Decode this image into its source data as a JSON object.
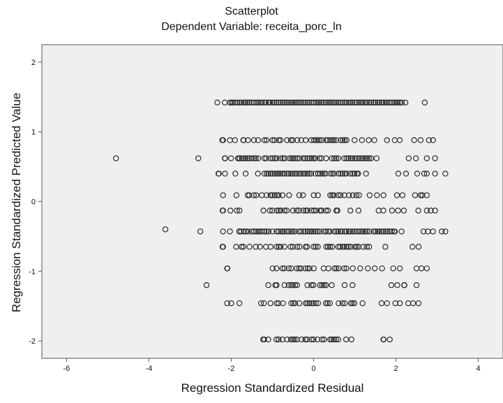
{
  "chart_data": {
    "type": "scatter",
    "title": "Scatterplot",
    "subtitle": "Dependent Variable: receita_porc_ln",
    "xlabel": "Regression Standardized Residual",
    "ylabel": "Regression Standardized Predicted Value",
    "xlim": [
      -6.6,
      4.6
    ],
    "ylim": [
      -2.25,
      2.25
    ],
    "xticks": [
      -6,
      -4,
      -2,
      0,
      2,
      4
    ],
    "yticks": [
      -2,
      -1,
      0,
      1,
      2
    ],
    "grid": false,
    "colors": {
      "plot_bg": "#efefef",
      "marker": "#2a2a2a",
      "frame": "#555555"
    },
    "bands": [
      {
        "y": 1.42,
        "xmin": -2.5,
        "xmax": 2.45,
        "dense_min": -2.0,
        "dense_max": 2.2,
        "density": 1.0
      },
      {
        "y": 0.88,
        "xmin": -2.2,
        "xmax": 2.9,
        "dense_min": -1.6,
        "dense_max": 1.0,
        "density": 0.55
      },
      {
        "y": 0.62,
        "xmin": -2.15,
        "xmax": 2.85,
        "dense_min": -1.8,
        "dense_max": 1.5,
        "density": 0.8
      },
      {
        "y": 0.4,
        "xmin": -2.3,
        "xmax": 3.2,
        "dense_min": -1.2,
        "dense_max": 1.1,
        "density": 0.85
      },
      {
        "y": 0.09,
        "xmin": -2.2,
        "xmax": 2.75,
        "dense_min": -1.5,
        "dense_max": 1.2,
        "density": 0.6
      },
      {
        "y": -0.13,
        "xmin": -2.2,
        "xmax": 2.95,
        "dense_min": -1.0,
        "dense_max": 0.6,
        "density": 0.45
      },
      {
        "y": -0.43,
        "xmin": -2.2,
        "xmax": 3.2,
        "dense_min": -1.8,
        "dense_max": 2.0,
        "density": 0.9
      },
      {
        "y": -0.65,
        "xmin": -2.2,
        "xmax": 2.5,
        "dense_min": -1.3,
        "dense_max": 1.4,
        "density": 0.55
      },
      {
        "y": -0.96,
        "xmin": -2.1,
        "xmax": 2.75,
        "dense_min": -1.0,
        "dense_max": 1.0,
        "density": 0.6
      },
      {
        "y": -1.2,
        "xmin": -1.1,
        "xmax": 2.5,
        "dense_min": -0.8,
        "dense_max": 0.6,
        "density": 0.5
      },
      {
        "y": -1.46,
        "xmin": -2.1,
        "xmax": 2.55,
        "dense_min": -1.2,
        "dense_max": 1.0,
        "density": 0.6
      },
      {
        "y": -1.98,
        "xmin": -1.2,
        "xmax": 1.85,
        "dense_min": -0.9,
        "dense_max": 0.6,
        "density": 0.7
      }
    ],
    "points": [
      [
        2.7,
        1.42
      ],
      [
        -4.8,
        0.62
      ],
      [
        -2.8,
        0.62
      ],
      [
        -3.6,
        -0.4
      ],
      [
        -2.75,
        -0.43
      ],
      [
        -2.6,
        -1.2
      ],
      [
        2.9,
        0.88
      ],
      [
        2.75,
        0.62
      ],
      [
        2.8,
        0.88
      ],
      [
        2.95,
        0.62
      ],
      [
        2.75,
        0.4
      ],
      [
        2.95,
        0.4
      ],
      [
        3.2,
        0.4
      ],
      [
        2.75,
        0.09
      ],
      [
        2.6,
        0.09
      ],
      [
        2.95,
        -0.13
      ],
      [
        2.75,
        -0.13
      ],
      [
        3.2,
        -0.43
      ],
      [
        2.9,
        -0.43
      ],
      [
        2.55,
        -0.65
      ],
      [
        2.4,
        -0.65
      ],
      [
        2.75,
        -0.96
      ],
      [
        2.5,
        -0.96
      ],
      [
        2.5,
        -1.2
      ],
      [
        2.2,
        -1.2
      ],
      [
        2.55,
        -1.46
      ],
      [
        2.3,
        -1.46
      ],
      [
        1.85,
        -1.98
      ],
      [
        1.7,
        -1.98
      ],
      [
        -2.2,
        0.88
      ],
      [
        -2.15,
        0.62
      ],
      [
        -2.3,
        0.4
      ],
      [
        -2.2,
        0.09
      ],
      [
        -2.2,
        -0.13
      ],
      [
        -2.2,
        -0.43
      ],
      [
        -2.2,
        -0.65
      ],
      [
        -2.1,
        -0.96
      ],
      [
        -2.1,
        -1.46
      ],
      [
        -2.0,
        -1.46
      ],
      [
        -1.2,
        -1.98
      ],
      [
        -1.1,
        -1.98
      ],
      [
        -1.1,
        -1.2
      ],
      [
        -0.9,
        -1.2
      ],
      [
        -1.8,
        -0.43
      ],
      [
        -1.9,
        0.4
      ],
      [
        -1.7,
        0.88
      ],
      [
        -1.8,
        0.62
      ],
      [
        -1.6,
        0.09
      ],
      [
        -1.8,
        -0.13
      ],
      [
        -1.75,
        -0.65
      ]
    ]
  }
}
